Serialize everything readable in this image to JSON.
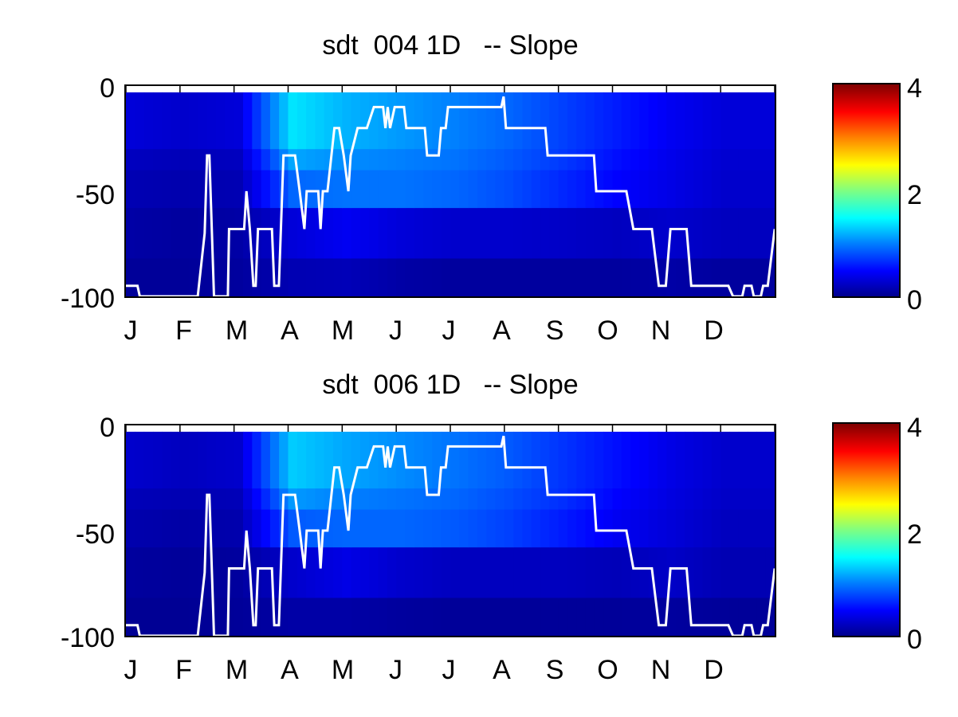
{
  "chart_data": [
    {
      "type": "heatmap",
      "title": "sdt  004 1D   -- Slope",
      "x_ticks": [
        "J",
        "F",
        "M",
        "A",
        "M",
        "J",
        "J",
        "A",
        "S",
        "O",
        "N",
        "D"
      ],
      "y_ticks": [
        "0",
        "-50",
        "-100"
      ],
      "ylim": [
        -100,
        0
      ],
      "colorbar": {
        "ticks": [
          "4",
          "2",
          "0"
        ],
        "range": [
          0,
          4
        ],
        "colormap": "jet"
      },
      "depth_bands": [
        -3,
        -30,
        -40,
        -58,
        -82,
        -100
      ],
      "value_profile": [
        [
          0.35,
          0.25,
          0.2,
          0.15,
          0.1
        ],
        [
          0.3,
          0.22,
          0.18,
          0.12,
          0.1
        ],
        [
          0.35,
          0.25,
          0.2,
          0.15,
          0.12
        ],
        [
          1.4,
          1.15,
          0.9,
          0.35,
          0.2
        ],
        [
          1.2,
          1.05,
          0.95,
          0.45,
          0.22
        ],
        [
          1.1,
          1.0,
          0.95,
          0.35,
          0.15
        ],
        [
          1.0,
          0.95,
          0.9,
          0.3,
          0.12
        ],
        [
          0.9,
          0.85,
          0.8,
          0.3,
          0.12
        ],
        [
          0.75,
          0.72,
          0.65,
          0.28,
          0.12
        ],
        [
          0.6,
          0.55,
          0.5,
          0.25,
          0.12
        ],
        [
          0.45,
          0.42,
          0.4,
          0.3,
          0.15
        ],
        [
          0.35,
          0.32,
          0.3,
          0.25,
          0.12
        ]
      ],
      "line_color": "#ffffff",
      "line_points": [
        [
          0,
          -95
        ],
        [
          0.5,
          -95
        ],
        [
          0.6,
          -100
        ],
        [
          3.1,
          -100
        ],
        [
          3.4,
          -70
        ],
        [
          3.5,
          -33
        ],
        [
          3.6,
          -33
        ],
        [
          3.8,
          -100
        ],
        [
          4.4,
          -100
        ],
        [
          4.45,
          -68
        ],
        [
          5.1,
          -68
        ],
        [
          5.2,
          -50
        ],
        [
          5.35,
          -68
        ],
        [
          5.5,
          -95
        ],
        [
          5.6,
          -95
        ],
        [
          5.7,
          -68
        ],
        [
          6.3,
          -68
        ],
        [
          6.4,
          -95
        ],
        [
          6.6,
          -95
        ],
        [
          6.8,
          -33
        ],
        [
          7.3,
          -33
        ],
        [
          7.5,
          -50
        ],
        [
          7.7,
          -68
        ],
        [
          7.8,
          -50
        ],
        [
          8.3,
          -50
        ],
        [
          8.4,
          -68
        ],
        [
          8.5,
          -50
        ],
        [
          8.7,
          -50
        ],
        [
          9.0,
          -20
        ],
        [
          9.2,
          -20
        ],
        [
          9.4,
          -33
        ],
        [
          9.6,
          -50
        ],
        [
          9.7,
          -33
        ],
        [
          10.0,
          -20
        ],
        [
          10.4,
          -20
        ],
        [
          10.7,
          -10
        ],
        [
          11.1,
          -10
        ],
        [
          11.2,
          -20
        ],
        [
          11.3,
          -10
        ],
        [
          11.4,
          -20
        ],
        [
          11.6,
          -10
        ],
        [
          12.0,
          -10
        ],
        [
          12.1,
          -20
        ],
        [
          12.9,
          -20
        ],
        [
          13.0,
          -33
        ],
        [
          13.5,
          -33
        ],
        [
          13.6,
          -20
        ],
        [
          13.8,
          -20
        ],
        [
          13.9,
          -10
        ],
        [
          16.2,
          -10
        ],
        [
          16.3,
          -5
        ],
        [
          16.4,
          -20
        ],
        [
          17.2,
          -20
        ],
        [
          17.4,
          -20
        ],
        [
          17.6,
          -20
        ],
        [
          18.1,
          -20
        ],
        [
          18.2,
          -33
        ],
        [
          20.2,
          -33
        ],
        [
          20.3,
          -50
        ],
        [
          21.6,
          -50
        ],
        [
          21.9,
          -68
        ],
        [
          22.7,
          -68
        ],
        [
          23.0,
          -95
        ],
        [
          23.3,
          -95
        ],
        [
          23.5,
          -68
        ],
        [
          24.2,
          -68
        ],
        [
          24.4,
          -95
        ],
        [
          26.0,
          -95
        ],
        [
          26.2,
          -100
        ],
        [
          26.6,
          -100
        ],
        [
          26.7,
          -95
        ],
        [
          27.0,
          -95
        ],
        [
          27.1,
          -100
        ],
        [
          27.4,
          -100
        ],
        [
          27.5,
          -95
        ],
        [
          27.7,
          -95
        ],
        [
          28.0,
          -68
        ]
      ]
    },
    {
      "type": "heatmap",
      "title": "sdt  006 1D   -- Slope",
      "x_ticks": [
        "J",
        "F",
        "M",
        "A",
        "M",
        "J",
        "J",
        "A",
        "S",
        "O",
        "N",
        "D"
      ],
      "y_ticks": [
        "0",
        "-50",
        "-100"
      ],
      "ylim": [
        -100,
        0
      ],
      "colorbar": {
        "ticks": [
          "4",
          "2",
          "0"
        ],
        "range": [
          0,
          4
        ],
        "colormap": "jet"
      },
      "depth_bands": [
        -3,
        -30,
        -40,
        -58,
        -82,
        -100
      ],
      "value_profile": [
        [
          0.3,
          0.22,
          0.18,
          0.12,
          0.08
        ],
        [
          0.25,
          0.2,
          0.15,
          0.1,
          0.08
        ],
        [
          0.3,
          0.22,
          0.18,
          0.12,
          0.1
        ],
        [
          1.3,
          1.1,
          0.85,
          0.3,
          0.15
        ],
        [
          1.15,
          1.0,
          0.9,
          0.4,
          0.15
        ],
        [
          1.05,
          0.95,
          0.9,
          0.3,
          0.12
        ],
        [
          0.95,
          0.9,
          0.85,
          0.25,
          0.1
        ],
        [
          0.85,
          0.8,
          0.75,
          0.25,
          0.1
        ],
        [
          0.7,
          0.68,
          0.6,
          0.25,
          0.1
        ],
        [
          0.55,
          0.5,
          0.45,
          0.22,
          0.1
        ],
        [
          0.4,
          0.38,
          0.35,
          0.28,
          0.12
        ],
        [
          0.3,
          0.28,
          0.25,
          0.2,
          0.1
        ]
      ],
      "line_color": "#ffffff",
      "line_points": [
        [
          0,
          -95
        ],
        [
          0.5,
          -95
        ],
        [
          0.6,
          -100
        ],
        [
          3.1,
          -100
        ],
        [
          3.4,
          -70
        ],
        [
          3.5,
          -33
        ],
        [
          3.6,
          -33
        ],
        [
          3.8,
          -100
        ],
        [
          4.4,
          -100
        ],
        [
          4.45,
          -68
        ],
        [
          5.1,
          -68
        ],
        [
          5.2,
          -50
        ],
        [
          5.35,
          -68
        ],
        [
          5.5,
          -95
        ],
        [
          5.6,
          -95
        ],
        [
          5.7,
          -68
        ],
        [
          6.3,
          -68
        ],
        [
          6.4,
          -95
        ],
        [
          6.6,
          -95
        ],
        [
          6.8,
          -33
        ],
        [
          7.3,
          -33
        ],
        [
          7.5,
          -50
        ],
        [
          7.7,
          -68
        ],
        [
          7.8,
          -50
        ],
        [
          8.3,
          -50
        ],
        [
          8.4,
          -68
        ],
        [
          8.5,
          -50
        ],
        [
          8.7,
          -50
        ],
        [
          9.0,
          -20
        ],
        [
          9.2,
          -20
        ],
        [
          9.4,
          -33
        ],
        [
          9.6,
          -50
        ],
        [
          9.7,
          -33
        ],
        [
          10.0,
          -20
        ],
        [
          10.4,
          -20
        ],
        [
          10.7,
          -10
        ],
        [
          11.1,
          -10
        ],
        [
          11.2,
          -20
        ],
        [
          11.3,
          -10
        ],
        [
          11.4,
          -20
        ],
        [
          11.6,
          -10
        ],
        [
          12.0,
          -10
        ],
        [
          12.1,
          -20
        ],
        [
          12.9,
          -20
        ],
        [
          13.0,
          -33
        ],
        [
          13.5,
          -33
        ],
        [
          13.6,
          -20
        ],
        [
          13.8,
          -20
        ],
        [
          13.9,
          -10
        ],
        [
          16.2,
          -10
        ],
        [
          16.3,
          -5
        ],
        [
          16.4,
          -20
        ],
        [
          17.2,
          -20
        ],
        [
          17.4,
          -20
        ],
        [
          17.6,
          -20
        ],
        [
          18.1,
          -20
        ],
        [
          18.2,
          -33
        ],
        [
          20.2,
          -33
        ],
        [
          20.3,
          -50
        ],
        [
          21.6,
          -50
        ],
        [
          21.9,
          -68
        ],
        [
          22.7,
          -68
        ],
        [
          23.0,
          -95
        ],
        [
          23.3,
          -95
        ],
        [
          23.5,
          -68
        ],
        [
          24.2,
          -68
        ],
        [
          24.4,
          -95
        ],
        [
          26.0,
          -95
        ],
        [
          26.2,
          -100
        ],
        [
          26.6,
          -100
        ],
        [
          26.7,
          -95
        ],
        [
          27.0,
          -95
        ],
        [
          27.1,
          -100
        ],
        [
          27.4,
          -100
        ],
        [
          27.5,
          -95
        ],
        [
          27.7,
          -95
        ],
        [
          28.0,
          -68
        ]
      ]
    }
  ]
}
